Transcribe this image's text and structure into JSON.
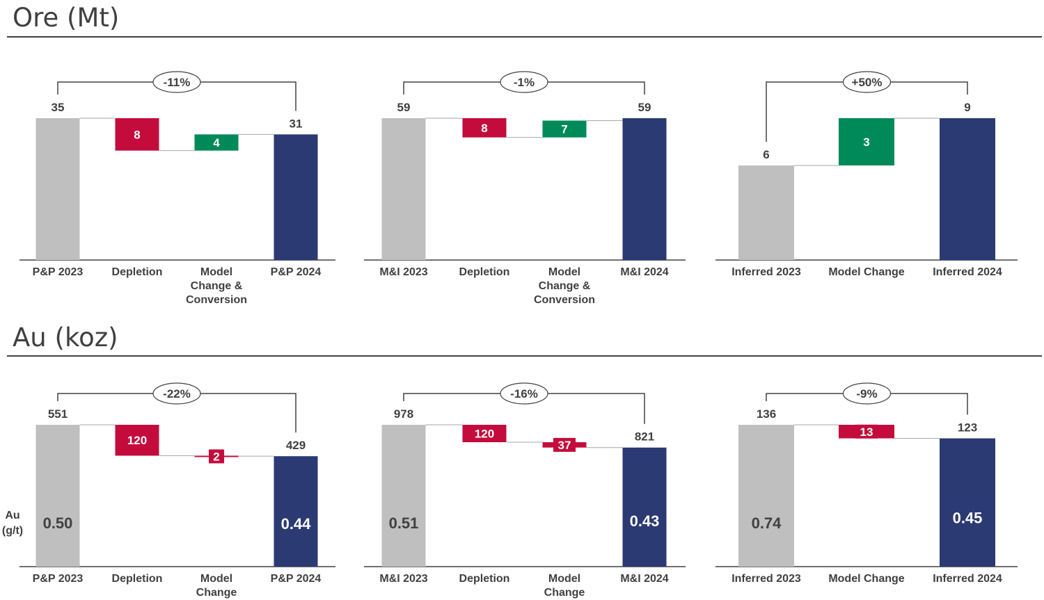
{
  "sections": [
    {
      "title": "Ore (Mt)"
    },
    {
      "title": "Au (koz)",
      "side_label": [
        "Au",
        "(g/t)"
      ]
    }
  ],
  "colors": {
    "start": "#bfbfbf",
    "decrease": "#c40c3c",
    "increase": "#008a5a",
    "end": "#2b3a73",
    "text": "#404040"
  },
  "chart_data": [
    {
      "type": "bar",
      "subtype": "waterfall",
      "section": 0,
      "categories": [
        [
          "P&P 2023"
        ],
        [
          "Depletion"
        ],
        [
          "Model",
          "Change &",
          "Conversion"
        ],
        [
          "P&P 2024"
        ]
      ],
      "start": 35,
      "deltas": [
        -8,
        4
      ],
      "end": 31,
      "change_label": "-11%"
    },
    {
      "type": "bar",
      "subtype": "waterfall",
      "section": 0,
      "categories": [
        [
          "M&I 2023"
        ],
        [
          "Depletion"
        ],
        [
          "Model",
          "Change &",
          "Conversion"
        ],
        [
          "M&I 2024"
        ]
      ],
      "start": 59,
      "deltas": [
        -8,
        7
      ],
      "end": 59,
      "change_label": "-1%"
    },
    {
      "type": "bar",
      "subtype": "waterfall",
      "section": 0,
      "categories": [
        [
          "Inferred 2023"
        ],
        [
          "Model Change"
        ],
        [
          "Inferred 2024"
        ]
      ],
      "start": 6,
      "deltas": [
        3
      ],
      "end": 9,
      "change_label": "+50%"
    },
    {
      "type": "bar",
      "subtype": "waterfall",
      "section": 1,
      "categories": [
        [
          "P&P 2023"
        ],
        [
          "Depletion"
        ],
        [
          "Model",
          "Change"
        ],
        [
          "P&P 2024"
        ]
      ],
      "start": 551,
      "deltas": [
        -120,
        -2
      ],
      "end": 429,
      "change_label": "-22%",
      "grades": [
        "0.50",
        "0.44"
      ]
    },
    {
      "type": "bar",
      "subtype": "waterfall",
      "section": 1,
      "categories": [
        [
          "M&I 2023"
        ],
        [
          "Depletion"
        ],
        [
          "Model",
          "Change"
        ],
        [
          "M&I 2024"
        ]
      ],
      "start": 978,
      "deltas": [
        -120,
        -37
      ],
      "end": 821,
      "change_label": "-16%",
      "grades": [
        "0.51",
        "0.43"
      ]
    },
    {
      "type": "bar",
      "subtype": "waterfall",
      "section": 1,
      "categories": [
        [
          "Inferred 2023"
        ],
        [
          "Model Change"
        ],
        [
          "Inferred 2024"
        ]
      ],
      "start": 136,
      "deltas": [
        -13
      ],
      "end": 123,
      "change_label": "-9%",
      "grades": [
        "0.74",
        "0.45"
      ]
    }
  ]
}
